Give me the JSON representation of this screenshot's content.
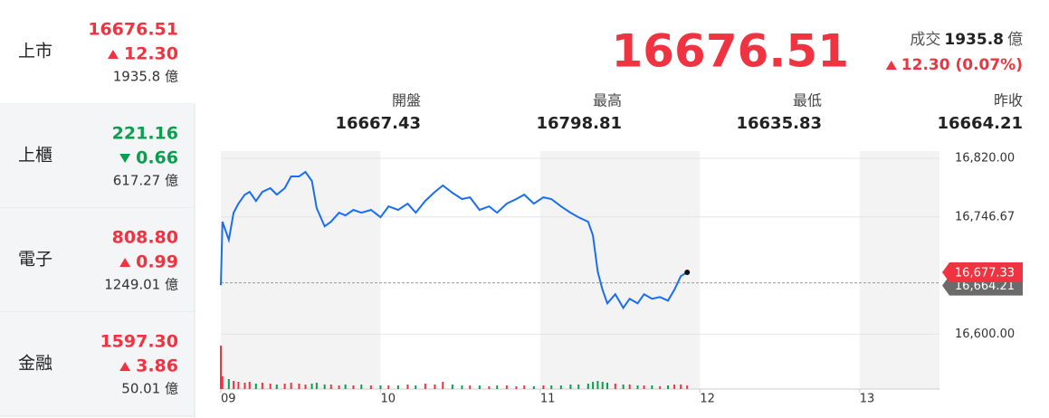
{
  "sidebar": {
    "items": [
      {
        "name": "上市",
        "price": "16676.51",
        "change": "12.30",
        "volume": "1935.8 億",
        "direction": "up",
        "color": "#ef3340"
      },
      {
        "name": "上櫃",
        "price": "221.16",
        "change": "0.66",
        "volume": "617.27 億",
        "direction": "down",
        "color": "#0b9e4f"
      },
      {
        "name": "電子",
        "price": "808.80",
        "change": "0.99",
        "volume": "1249.01 億",
        "direction": "up",
        "color": "#ef3340"
      },
      {
        "name": "金融",
        "price": "1597.30",
        "change": "3.86",
        "volume": "50.01 億",
        "direction": "up",
        "color": "#ef3340"
      }
    ],
    "selected": 0
  },
  "header": {
    "price": "16676.51",
    "volume_label": "成交",
    "volume": "1935.8",
    "volume_unit": "億",
    "change": "12.30 (0.07%)",
    "direction": "up",
    "color": "#ef3340",
    "ohlc": [
      {
        "label": "開盤",
        "value": "16667.43"
      },
      {
        "label": "最高",
        "value": "16798.81"
      },
      {
        "label": "最低",
        "value": "16635.83"
      },
      {
        "label": "昨收",
        "value": "16664.21"
      }
    ]
  },
  "chart_data": {
    "type": "line",
    "color": "#1a6ef0",
    "x": [
      9,
      9.01,
      9.05,
      9.08,
      9.11,
      9.15,
      9.18,
      9.22,
      9.26,
      9.31,
      9.35,
      9.4,
      9.44,
      9.49,
      9.53,
      9.57,
      9.6,
      9.65,
      9.69,
      9.74,
      9.78,
      9.83,
      9.88,
      9.94,
      10,
      10.05,
      10.11,
      10.17,
      10.22,
      10.28,
      10.34,
      10.39,
      10.45,
      10.51,
      10.56,
      10.62,
      10.68,
      10.73,
      10.79,
      10.85,
      10.9,
      10.96,
      11.02,
      11.07,
      11.13,
      11.19,
      11.24,
      11.3,
      11.33,
      11.36,
      11.39,
      11.42,
      11.47,
      11.52,
      11.56,
      11.61,
      11.65,
      11.7,
      11.75,
      11.8,
      11.84,
      11.88,
      11.92
    ],
    "values": [
      16661.3,
      16740.6,
      16718,
      16752,
      16763.3,
      16774.6,
      16778,
      16766.7,
      16778,
      16782.6,
      16774.6,
      16782.6,
      16797.3,
      16797.3,
      16803,
      16791.7,
      16757.6,
      16735,
      16740.6,
      16752,
      16748.6,
      16755.4,
      16752,
      16755.4,
      16746.3,
      16759.9,
      16755.4,
      16763.3,
      16752,
      16766.7,
      16778,
      16786,
      16776.9,
      16769,
      16771.2,
      16755.4,
      16759.9,
      16752,
      16763.3,
      16769,
      16774.6,
      16763.3,
      16771.2,
      16769,
      16759.9,
      16752,
      16746.3,
      16740.6,
      16723.6,
      16678.3,
      16655.6,
      16638.6,
      16650,
      16632.9,
      16644.3,
      16638.6,
      16650,
      16644.3,
      16646.5,
      16642,
      16655.6,
      16672.6,
      16677.33
    ],
    "volume": [
      48,
      14,
      11,
      9,
      8,
      7,
      8,
      6,
      7,
      6,
      5,
      6,
      7,
      6,
      5,
      6,
      7,
      5,
      5,
      4,
      5,
      4,
      5,
      4,
      4,
      4,
      4,
      5,
      4,
      6,
      5,
      8,
      5,
      4,
      4,
      4,
      3,
      4,
      4,
      3,
      4,
      3,
      4,
      4,
      4,
      5,
      5,
      6,
      8,
      9,
      8,
      7,
      6,
      5,
      5,
      4,
      4,
      4,
      3,
      4,
      5,
      5,
      4
    ],
    "volume_lim": [
      0,
      50
    ],
    "up_color": "#ef3340",
    "down_color": "#0b9e4f",
    "xlim": [
      9,
      13.5
    ],
    "xticks": [
      {
        "value": 9,
        "label": "09"
      },
      {
        "value": 10,
        "label": "10"
      },
      {
        "value": 11,
        "label": "11"
      },
      {
        "value": 12,
        "label": "12"
      },
      {
        "value": 13,
        "label": "13"
      }
    ],
    "ylim": [
      16588,
      16829
    ],
    "yticks": [
      {
        "value": 16820,
        "label": "16,820.00"
      },
      {
        "value": 16746.67,
        "label": "16,746.67"
      },
      {
        "value": 16600,
        "label": "16,600.00"
      }
    ],
    "reference": {
      "value": 16664.21,
      "label": "16,664.21"
    },
    "current": {
      "value": 16677.33,
      "label": "16,677.33"
    },
    "grid": true
  }
}
